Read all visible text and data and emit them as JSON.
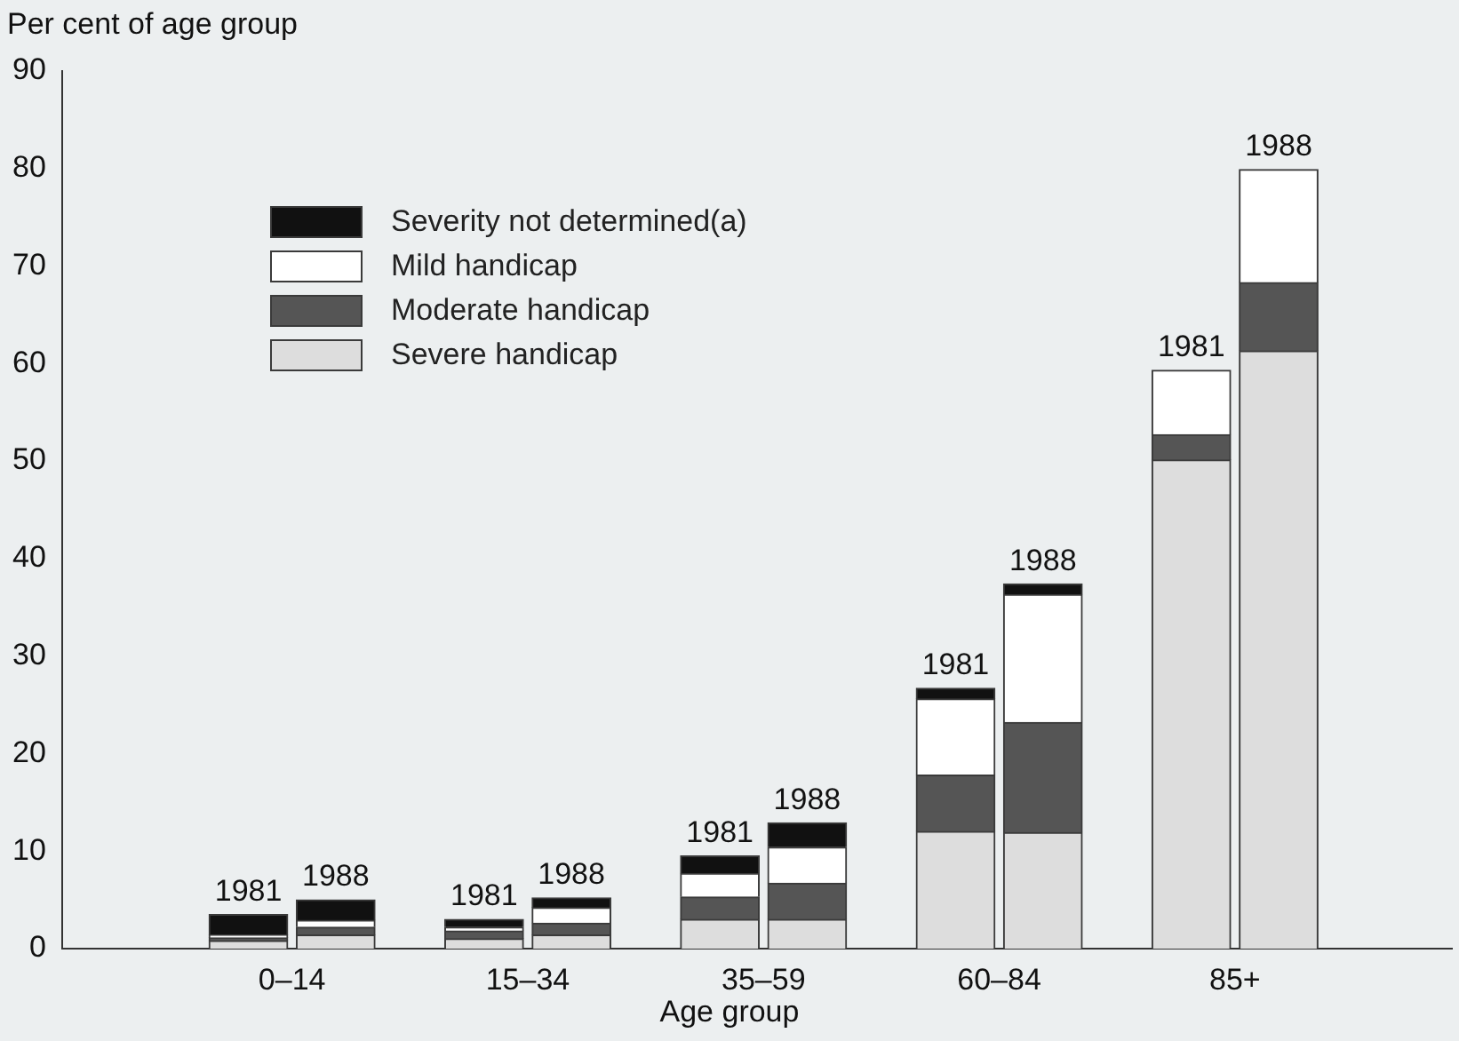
{
  "chart_data": {
    "type": "bar",
    "stacked": true,
    "ylabel": "Per cent of age group",
    "xlabel": "Age group",
    "categories": [
      "1981",
      "1988",
      "1981",
      "1988",
      "1981",
      "1988",
      "1981",
      "1988",
      "1981",
      "1988"
    ],
    "annotations": [
      "0–14",
      "15–34",
      "35–59",
      "60–84",
      "85+"
    ],
    "series": [
      {
        "name": "Severe handicap",
        "color": "#dddddd",
        "values": [
          0.8,
          1.4,
          1.0,
          1.4,
          3.0,
          3.0,
          12.0,
          11.9,
          50.1,
          61.3
        ]
      },
      {
        "name": "Moderate handicap",
        "color": "#555555",
        "values": [
          0.3,
          0.8,
          0.8,
          1.2,
          2.3,
          3.7,
          5.8,
          11.3,
          2.6,
          7.0
        ]
      },
      {
        "name": "Mild handicap",
        "color": "#ffffff",
        "values": [
          0.3,
          0.7,
          0.4,
          1.6,
          2.4,
          3.7,
          7.8,
          13.1,
          6.6,
          11.6
        ]
      },
      {
        "name": "Severity not determined(a)",
        "color": "#111111",
        "values": [
          2.1,
          2.1,
          0.8,
          1.0,
          1.8,
          2.5,
          1.1,
          1.1,
          0,
          0
        ]
      }
    ],
    "ylim": [
      0,
      90
    ],
    "yticks": [
      0,
      10,
      20,
      30,
      40,
      50,
      60,
      70,
      80,
      90
    ],
    "legend": "top left",
    "grid": false
  }
}
